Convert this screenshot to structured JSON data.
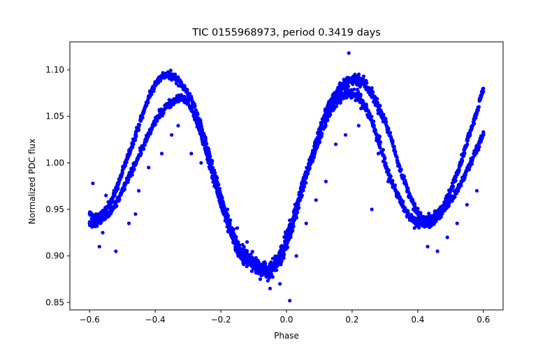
{
  "chart_data": {
    "type": "scatter",
    "title": "TIC 0155968973, period 0.3419 days",
    "xlabel": "Phase",
    "ylabel": "Normalized PDC flux",
    "xlim": [
      -0.66,
      0.66
    ],
    "ylim": [
      0.842,
      1.13
    ],
    "xticks": [
      -0.6,
      -0.4,
      -0.2,
      0.0,
      0.2,
      0.4,
      0.6
    ],
    "xtick_labels": [
      "−0.6",
      "−0.4",
      "−0.2",
      "0.0",
      "0.2",
      "0.4",
      "0.6"
    ],
    "yticks": [
      0.85,
      0.9,
      0.95,
      1.0,
      1.05,
      1.1
    ],
    "ytick_labels": [
      "0.85",
      "0.90",
      "0.95",
      "1.00",
      "1.05",
      "1.10"
    ],
    "grid": false,
    "marker_color": "#0000ff",
    "series": [
      {
        "x": [
          -0.6,
          -0.58,
          -0.56,
          -0.54,
          -0.52,
          -0.5,
          -0.48,
          -0.46,
          -0.44,
          -0.42,
          -0.4,
          -0.38,
          -0.36,
          -0.34,
          -0.32,
          -0.3,
          -0.28,
          -0.26,
          -0.24,
          -0.22,
          -0.2,
          -0.18,
          -0.16,
          -0.14,
          -0.12,
          -0.1,
          -0.08,
          -0.06,
          -0.04,
          -0.02,
          0.0,
          0.02,
          0.04,
          0.06,
          0.08,
          0.1,
          0.12,
          0.14,
          0.16,
          0.18,
          0.2,
          0.22,
          0.24,
          0.26,
          0.28,
          0.3,
          0.32,
          0.34,
          0.36,
          0.38,
          0.4,
          0.42,
          0.44,
          0.46,
          0.48,
          0.5,
          0.52,
          0.54,
          0.56,
          0.58,
          0.6
        ],
        "y": [
          0.945,
          0.94,
          0.945,
          0.955,
          0.97,
          0.99,
          1.01,
          1.03,
          1.05,
          1.07,
          1.085,
          1.093,
          1.095,
          1.092,
          1.085,
          1.075,
          1.06,
          1.04,
          1.015,
          0.99,
          0.965,
          0.94,
          0.92,
          0.905,
          0.9,
          0.895,
          0.89,
          0.885,
          0.89,
          0.9,
          0.92,
          0.94,
          0.965,
          0.99,
          1.01,
          1.035,
          1.055,
          1.07,
          1.08,
          1.085,
          1.09,
          1.09,
          1.085,
          1.075,
          1.06,
          1.045,
          1.025,
          1.0,
          0.98,
          0.96,
          0.945,
          0.94,
          0.94,
          0.945,
          0.955,
          0.97,
          0.99,
          1.01,
          1.035,
          1.055,
          1.08
        ]
      },
      {
        "x": [
          -0.6,
          -0.58,
          -0.56,
          -0.54,
          -0.52,
          -0.5,
          -0.48,
          -0.46,
          -0.44,
          -0.42,
          -0.4,
          -0.38,
          -0.36,
          -0.34,
          -0.32,
          -0.3,
          -0.28,
          -0.26,
          -0.24,
          -0.22,
          -0.2,
          -0.18,
          -0.16,
          -0.14,
          -0.12,
          -0.1,
          -0.08,
          -0.06,
          -0.04,
          -0.02,
          0.0,
          0.02,
          0.04,
          0.06,
          0.08,
          0.1,
          0.12,
          0.14,
          0.16,
          0.18,
          0.2,
          0.22,
          0.24,
          0.26,
          0.28,
          0.3,
          0.32,
          0.34,
          0.36,
          0.38,
          0.4,
          0.42,
          0.44,
          0.46,
          0.48,
          0.5,
          0.52,
          0.54,
          0.56,
          0.58,
          0.6
        ],
        "y": [
          0.935,
          0.935,
          0.94,
          0.945,
          0.955,
          0.97,
          0.985,
          1.0,
          1.015,
          1.03,
          1.045,
          1.055,
          1.063,
          1.068,
          1.07,
          1.065,
          1.05,
          1.03,
          1.005,
          0.98,
          0.955,
          0.935,
          0.915,
          0.9,
          0.895,
          0.89,
          0.885,
          0.882,
          0.885,
          0.895,
          0.91,
          0.935,
          0.96,
          0.985,
          1.005,
          1.025,
          1.045,
          1.06,
          1.07,
          1.075,
          1.075,
          1.07,
          1.06,
          1.045,
          1.025,
          1.0,
          0.98,
          0.965,
          0.95,
          0.94,
          0.935,
          0.933,
          0.935,
          0.94,
          0.95,
          0.96,
          0.97,
          0.985,
          1.0,
          1.015,
          1.03
        ]
      }
    ],
    "outliers": {
      "x": [
        -0.59,
        -0.57,
        -0.55,
        -0.52,
        -0.48,
        -0.45,
        -0.42,
        -0.38,
        -0.35,
        -0.33,
        -0.29,
        -0.26,
        -0.22,
        -0.18,
        -0.15,
        -0.12,
        -0.08,
        -0.05,
        -0.02,
        0.01,
        0.03,
        0.06,
        0.09,
        0.12,
        0.15,
        0.18,
        0.22,
        0.25,
        0.28,
        0.31,
        0.35,
        0.39,
        0.43,
        0.46,
        0.49,
        0.52,
        0.55,
        0.58,
        -0.56,
        -0.46,
        0.26,
        0.19
      ],
      "y": [
        0.978,
        0.91,
        0.965,
        0.905,
        0.935,
        0.97,
        0.995,
        1.01,
        1.03,
        1.04,
        1.01,
        1.0,
        0.975,
        0.95,
        0.93,
        0.915,
        0.875,
        0.865,
        0.87,
        0.852,
        0.9,
        0.935,
        0.96,
        0.98,
        1.02,
        1.03,
        1.04,
        1.05,
        1.01,
        0.98,
        0.955,
        0.93,
        0.91,
        0.905,
        0.92,
        0.935,
        0.955,
        0.97,
        0.925,
        0.945,
        0.95,
        1.118
      ]
    }
  }
}
